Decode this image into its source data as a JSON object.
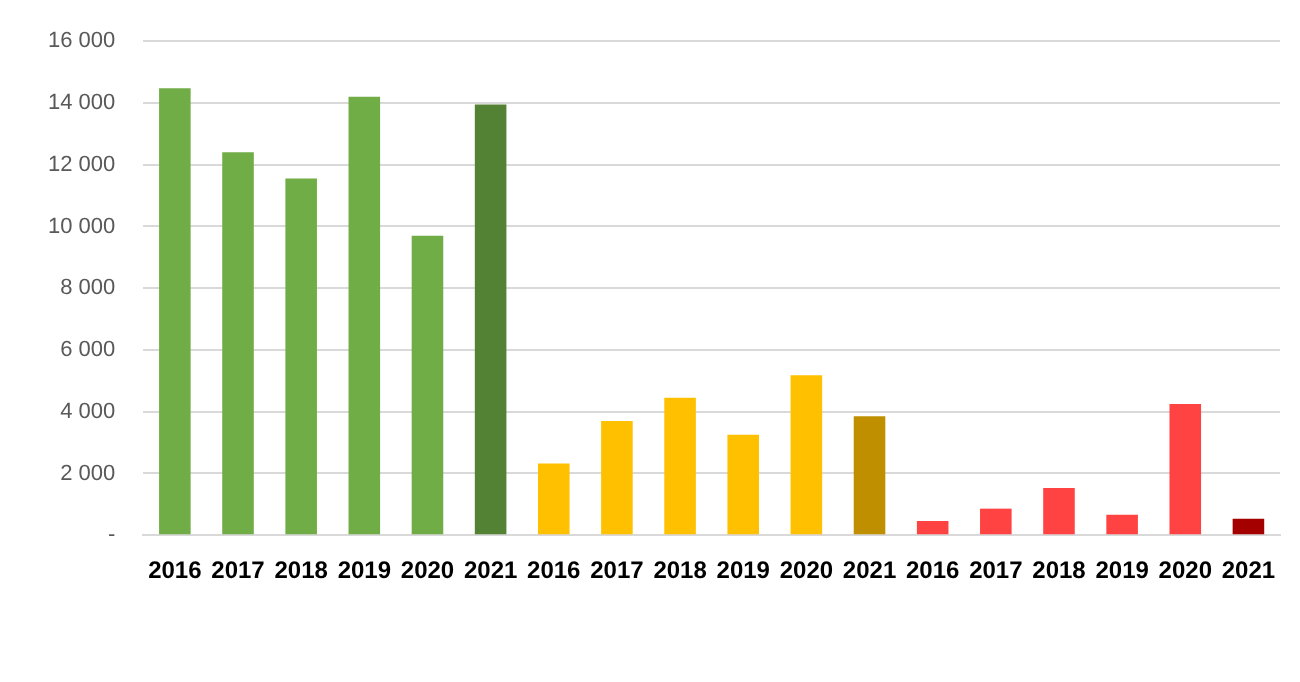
{
  "chart_data": {
    "type": "bar",
    "categories": [
      "2016",
      "2017",
      "2018",
      "2019",
      "2020",
      "2021",
      "2016",
      "2017",
      "2018",
      "2019",
      "2020",
      "2021",
      "2016",
      "2017",
      "2018",
      "2019",
      "2020",
      "2021"
    ],
    "values": [
      14480,
      12400,
      11550,
      14200,
      9700,
      13950,
      2320,
      3700,
      4450,
      3250,
      5180,
      3850,
      460,
      860,
      1530,
      660,
      4250,
      530
    ],
    "colors": [
      "#70ad47",
      "#70ad47",
      "#70ad47",
      "#70ad47",
      "#70ad47",
      "#548235",
      "#ffc000",
      "#ffc000",
      "#ffc000",
      "#ffc000",
      "#ffc000",
      "#bf8f00",
      "#ff4343",
      "#ff4343",
      "#ff4343",
      "#ff4343",
      "#ff4343",
      "#a50000"
    ],
    "ylim": [
      0,
      16000
    ],
    "yticks": [
      {
        "value": 0,
        "label": "-"
      },
      {
        "value": 2000,
        "label": "2 000"
      },
      {
        "value": 4000,
        "label": "4 000"
      },
      {
        "value": 6000,
        "label": "6 000"
      },
      {
        "value": 8000,
        "label": "8 000"
      },
      {
        "value": 10000,
        "label": "10 000"
      },
      {
        "value": 12000,
        "label": "12 000"
      },
      {
        "value": 14000,
        "label": "14 000"
      },
      {
        "value": 16000,
        "label": "16 000"
      }
    ],
    "grid": "y",
    "legend": false
  }
}
